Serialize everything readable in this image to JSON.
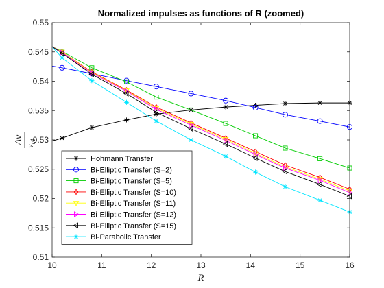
{
  "chart_data": {
    "type": "line",
    "title": "Normalized impulses as functions of R (zoomed)",
    "xlabel": "R",
    "ylabel": {
      "numerator": "Δv",
      "denominator_base": "v",
      "denominator_sub": "c1"
    },
    "xlim": [
      10,
      16
    ],
    "ylim": [
      0.51,
      0.55
    ],
    "xticks": [
      "10",
      "11",
      "12",
      "13",
      "14",
      "15",
      "16"
    ],
    "yticks": [
      "0.51",
      "0.515",
      "0.52",
      "0.525",
      "0.53",
      "0.535",
      "0.54",
      "0.545",
      "0.55"
    ],
    "grid": false,
    "legend_position": "bottom-left",
    "series": [
      {
        "name": "Hohmann Transfer",
        "color": "#000000",
        "marker": "star",
        "x": [
          10,
          10.2,
          10.8,
          11.5,
          12.1,
          12.8,
          13.5,
          14.1,
          14.7,
          15.4,
          16
        ],
        "y": [
          0.5298,
          0.5303,
          0.5321,
          0.5334,
          0.5344,
          0.5351,
          0.5356,
          0.5359,
          0.5362,
          0.5363,
          0.5363
        ]
      },
      {
        "name": "Bi-Elliptic Transfer (S=2)",
        "color": "#0000ff",
        "marker": "circle",
        "x": [
          10,
          10.2,
          10.8,
          11.5,
          12.1,
          12.8,
          13.5,
          14.1,
          14.7,
          15.4,
          16
        ],
        "y": [
          0.5426,
          0.5423,
          0.5413,
          0.5401,
          0.5391,
          0.5379,
          0.5367,
          0.5355,
          0.5343,
          0.5332,
          0.5322
        ]
      },
      {
        "name": "Bi-Elliptic Transfer (S=5)",
        "color": "#00cc00",
        "marker": "square",
        "x": [
          10,
          10.2,
          10.8,
          11.5,
          12.1,
          12.8,
          13.5,
          14.1,
          14.7,
          15.4,
          16
        ],
        "y": [
          0.5459,
          0.5451,
          0.5423,
          0.5399,
          0.5373,
          0.5351,
          0.5328,
          0.5307,
          0.5286,
          0.5268,
          0.5252
        ]
      },
      {
        "name": "Bi-Elliptic Transfer (S=10)",
        "color": "#ff0000",
        "marker": "diamond",
        "x": [
          10,
          10.2,
          10.8,
          11.5,
          12.1,
          12.8,
          13.5,
          14.1,
          14.7,
          15.4,
          16
        ],
        "y": [
          0.5459,
          0.545,
          0.5416,
          0.5385,
          0.5356,
          0.5329,
          0.5303,
          0.528,
          0.5257,
          0.5236,
          0.5216
        ]
      },
      {
        "name": "Bi-Elliptic Transfer (S=11)",
        "color": "#ffff00",
        "marker": "triangle-down",
        "x": [
          10,
          10.2,
          10.8,
          11.5,
          12.1,
          12.8,
          13.5,
          14.1,
          14.7,
          15.4,
          16
        ],
        "y": [
          0.5459,
          0.545,
          0.5415,
          0.5384,
          0.5354,
          0.5327,
          0.5301,
          0.5277,
          0.5254,
          0.5233,
          0.5213
        ]
      },
      {
        "name": "Bi-Elliptic Transfer (S=12)",
        "color": "#ff00ff",
        "marker": "triangle-right",
        "x": [
          10,
          10.2,
          10.8,
          11.5,
          12.1,
          12.8,
          13.5,
          14.1,
          14.7,
          15.4,
          16
        ],
        "y": [
          0.5459,
          0.5449,
          0.5414,
          0.5383,
          0.5352,
          0.5325,
          0.5299,
          0.5275,
          0.5252,
          0.5231,
          0.521
        ]
      },
      {
        "name": "Bi-Elliptic Transfer (S=15)",
        "color": "#000000",
        "marker": "triangle-left",
        "x": [
          10,
          10.2,
          10.8,
          11.5,
          12.1,
          12.8,
          13.5,
          14.1,
          14.7,
          15.4,
          16
        ],
        "y": [
          0.5459,
          0.5448,
          0.5412,
          0.5379,
          0.5347,
          0.5319,
          0.5293,
          0.5269,
          0.5246,
          0.5224,
          0.5204
        ]
      },
      {
        "name": "Bi-Parabolic Transfer",
        "color": "#00e5ff",
        "marker": "star",
        "x": [
          10,
          10.2,
          10.8,
          11.5,
          12.1,
          12.8,
          13.5,
          14.1,
          14.7,
          15.4,
          16
        ],
        "y": [
          0.5459,
          0.544,
          0.5401,
          0.5364,
          0.5332,
          0.53,
          0.5272,
          0.5245,
          0.522,
          0.5197,
          0.5177
        ]
      }
    ]
  }
}
